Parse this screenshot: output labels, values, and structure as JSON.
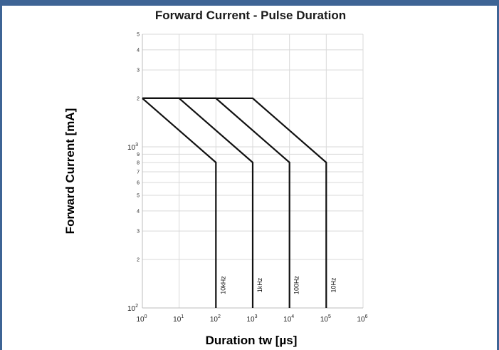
{
  "chart_data": {
    "type": "line",
    "title": "Forward Current - Pulse Duration",
    "xlabel": "Duration tw [µs]",
    "ylabel": "Forward Current [mA]",
    "x_scale": "log",
    "y_scale": "log",
    "xlim": [
      1,
      1000000
    ],
    "ylim": [
      100,
      5000
    ],
    "grid": true,
    "x_major_ticks": [
      {
        "base": "10",
        "exp": "0",
        "value": 1
      },
      {
        "base": "10",
        "exp": "1",
        "value": 10
      },
      {
        "base": "10",
        "exp": "2",
        "value": 100
      },
      {
        "base": "10",
        "exp": "3",
        "value": 1000
      },
      {
        "base": "10",
        "exp": "4",
        "value": 10000
      },
      {
        "base": "10",
        "exp": "5",
        "value": 100000
      },
      {
        "base": "10",
        "exp": "6",
        "value": 1000000
      }
    ],
    "y_major_ticks": [
      {
        "base": "10",
        "exp": "2",
        "value": 100
      },
      {
        "base": "10",
        "exp": "3",
        "value": 1000
      }
    ],
    "y_minor_ticks": [
      {
        "label": "2",
        "value": 200
      },
      {
        "label": "3",
        "value": 300
      },
      {
        "label": "4",
        "value": 400
      },
      {
        "label": "5",
        "value": 500
      },
      {
        "label": "6",
        "value": 600
      },
      {
        "label": "7",
        "value": 700
      },
      {
        "label": "8",
        "value": 800
      },
      {
        "label": "9",
        "value": 900
      },
      {
        "label": "2",
        "value": 2000
      },
      {
        "label": "3",
        "value": 3000
      },
      {
        "label": "4",
        "value": 4000
      },
      {
        "label": "5",
        "value": 5000
      }
    ],
    "series": [
      {
        "name": "10kHz",
        "x": [
          1,
          100,
          100
        ],
        "y": [
          2000,
          800,
          100
        ]
      },
      {
        "name": "1kHz",
        "x": [
          1,
          10,
          1000,
          1000
        ],
        "y": [
          2000,
          2000,
          800,
          100
        ]
      },
      {
        "name": "100Hz",
        "x": [
          1,
          100,
          10000,
          10000
        ],
        "y": [
          2000,
          2000,
          800,
          100
        ]
      },
      {
        "name": "10Hz",
        "x": [
          1,
          1000,
          100000,
          100000
        ],
        "y": [
          2000,
          2000,
          800,
          100
        ]
      }
    ],
    "series_color": "#111111",
    "grid_color": "#d9d9d9"
  }
}
